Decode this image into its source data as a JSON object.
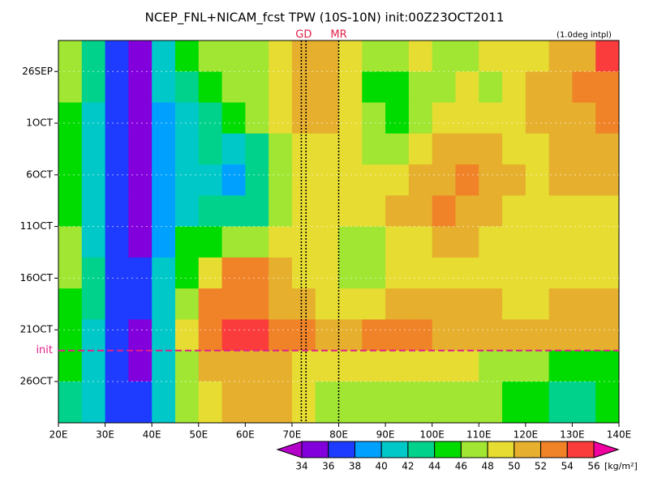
{
  "chart_data": {
    "type": "heatmap",
    "title": "NCEP_FNL+NICAM_fcst TPW (10S-10N) init:00Z23OCT2011",
    "subtitle": "(1.0deg intpl)",
    "xlim": [
      20,
      140
    ],
    "xticks": [
      {
        "value": 20,
        "label": "20E"
      },
      {
        "value": 30,
        "label": "30E"
      },
      {
        "value": 40,
        "label": "40E"
      },
      {
        "value": 50,
        "label": "50E"
      },
      {
        "value": 60,
        "label": "60E"
      },
      {
        "value": 70,
        "label": "70E"
      },
      {
        "value": 80,
        "label": "80E"
      },
      {
        "value": 90,
        "label": "90E"
      },
      {
        "value": 100,
        "label": "100E"
      },
      {
        "value": 110,
        "label": "110E"
      },
      {
        "value": 120,
        "label": "120E"
      },
      {
        "value": 130,
        "label": "130E"
      },
      {
        "value": 140,
        "label": "140E"
      }
    ],
    "ylim": [
      266,
      303
    ],
    "yticks": [
      {
        "value": 269,
        "label": "26SEP"
      },
      {
        "value": 274,
        "label": "1OCT"
      },
      {
        "value": 279,
        "label": "6OCT"
      },
      {
        "value": 284,
        "label": "11OCT"
      },
      {
        "value": 289,
        "label": "16OCT"
      },
      {
        "value": 294,
        "label": "21OCT"
      },
      {
        "value": 299,
        "label": "26OCT"
      }
    ],
    "x": [
      22.5,
      27.5,
      32.5,
      37.5,
      42.5,
      47.5,
      52.5,
      57.5,
      62.5,
      67.5,
      72.5,
      77.5,
      82.5,
      87.5,
      92.5,
      97.5,
      102.5,
      107.5,
      112.5,
      117.5,
      122.5,
      127.5,
      132.5,
      137.5
    ],
    "y": [
      267.5,
      270.5,
      273.5,
      276.5,
      279.5,
      282.5,
      285.5,
      288.5,
      291.5,
      294.5,
      297.5,
      300.5
    ],
    "z": [
      [
        46,
        42,
        36,
        35,
        40,
        44,
        46,
        47,
        47,
        49,
        51,
        51,
        48,
        46,
        47,
        48,
        46,
        47,
        48,
        48,
        48,
        50,
        51,
        54
      ],
      [
        46,
        42,
        36,
        35,
        40,
        42,
        44,
        46,
        47,
        49,
        51,
        51,
        48,
        45,
        45,
        47,
        47,
        48,
        47,
        48,
        50,
        51,
        52,
        53
      ],
      [
        45,
        41,
        36,
        35,
        39,
        41,
        43,
        44,
        46,
        48,
        50,
        50,
        49,
        46,
        45,
        46,
        48,
        49,
        49,
        48,
        50,
        51,
        51,
        52
      ],
      [
        44,
        40,
        36,
        34,
        38,
        40,
        42,
        40,
        43,
        47,
        49,
        49,
        48,
        47,
        47,
        49,
        50,
        51,
        51,
        49,
        49,
        50,
        50,
        51
      ],
      [
        44,
        40,
        36,
        35,
        38,
        41,
        40,
        38,
        42,
        47,
        48,
        49,
        49,
        48,
        49,
        50,
        51,
        52,
        51,
        50,
        49,
        50,
        50,
        50
      ],
      [
        45,
        40,
        36,
        35,
        38,
        41,
        42,
        42,
        43,
        46,
        48,
        49,
        48,
        48,
        50,
        51,
        52,
        51,
        50,
        49,
        49,
        48,
        48,
        49
      ],
      [
        46,
        41,
        37,
        35,
        39,
        44,
        44,
        46,
        47,
        49,
        49,
        48,
        47,
        47,
        48,
        49,
        50,
        50,
        49,
        48,
        48,
        48,
        48,
        48
      ],
      [
        46,
        42,
        37,
        36,
        40,
        45,
        48,
        52,
        53,
        51,
        49,
        48,
        47,
        47,
        48,
        48,
        49,
        49,
        49,
        48,
        48,
        49,
        49,
        49
      ],
      [
        45,
        42,
        37,
        36,
        41,
        47,
        52,
        53,
        52,
        51,
        50,
        49,
        49,
        49,
        50,
        50,
        50,
        50,
        50,
        49,
        49,
        50,
        50,
        50
      ],
      [
        45,
        41,
        36,
        35,
        41,
        48,
        53,
        54,
        54,
        53,
        52,
        51,
        51,
        52,
        53,
        52,
        51,
        51,
        51,
        50,
        50,
        51,
        51,
        51
      ],
      [
        44,
        40,
        36,
        35,
        41,
        47,
        50,
        51,
        51,
        50,
        49,
        48,
        48,
        48,
        49,
        48,
        48,
        48,
        47,
        47,
        46,
        44,
        44,
        45
      ],
      [
        43,
        40,
        36,
        36,
        40,
        46,
        49,
        50,
        50,
        50,
        48,
        47,
        47,
        47,
        47,
        47,
        47,
        46,
        46,
        45,
        44,
        42,
        43,
        44
      ]
    ],
    "colorbar": {
      "levels": [
        34,
        36,
        38,
        40,
        42,
        44,
        46,
        48,
        50,
        52,
        54,
        56
      ],
      "colors": [
        "#b400c8",
        "#8200dc",
        "#1e3cff",
        "#00a0ff",
        "#00c8c8",
        "#00d28c",
        "#00dc00",
        "#a0e632",
        "#e6dc32",
        "#e6af2d",
        "#f08228",
        "#fa3c3c",
        "#f000a0"
      ],
      "unit": "[kg/m²]"
    },
    "markers": [
      {
        "label": "GD",
        "x": [
          72,
          73
        ]
      },
      {
        "label": "MR",
        "x": [
          80
        ]
      }
    ],
    "init_marker": {
      "label": "init",
      "value": 296
    }
  }
}
